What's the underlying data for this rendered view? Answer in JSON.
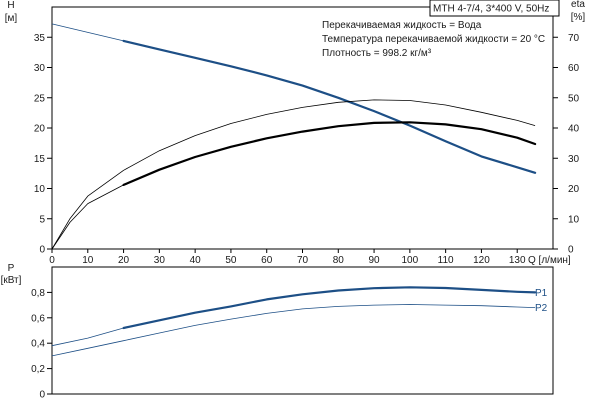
{
  "header": {
    "product": "MTH 4-7/4, 3*400 V, 50Hz",
    "info": [
      "Перекачиваемая жидкость = Вода",
      "Температура перекачиваемой жидкости = 20 °C",
      "Плотность = 998.2 кг/м³"
    ]
  },
  "colors": {
    "pump": "#1d4f86",
    "eta": "#000000",
    "power": "#1d4f86"
  },
  "chart_data": [
    {
      "type": "line",
      "xlabel": "Q [л/мин]",
      "x_ticks": [
        0,
        10,
        20,
        30,
        40,
        50,
        60,
        70,
        80,
        90,
        100,
        110,
        120,
        130
      ],
      "xlim": [
        0,
        140
      ],
      "y_left": {
        "label_top": "H",
        "label_bottom": "[м]",
        "ticks": [
          0,
          5,
          10,
          15,
          20,
          25,
          30,
          35
        ],
        "lim": [
          0,
          40
        ]
      },
      "y_right": {
        "label_top": "eta",
        "label_bottom": "[%]",
        "ticks": [
          0,
          10,
          20,
          30,
          40,
          50,
          60,
          70
        ],
        "lim": [
          0,
          80
        ]
      },
      "grid": false,
      "series": [
        {
          "axis": "left",
          "color": "#1d4f86",
          "thin_x": [
            0,
            20
          ],
          "thick_x": [
            20,
            135
          ],
          "x": [
            0,
            10,
            20,
            30,
            40,
            50,
            60,
            70,
            80,
            90,
            100,
            110,
            120,
            130,
            135
          ],
          "y": [
            37.2,
            35.8,
            34.4,
            33.0,
            31.6,
            30.2,
            28.7,
            27.0,
            25.0,
            22.8,
            20.4,
            17.8,
            15.3,
            13.5,
            12.6
          ]
        },
        {
          "axis": "right",
          "color": "#000000",
          "thin_x": [
            0,
            20
          ],
          "thick_x": [
            20,
            135
          ],
          "x": [
            0,
            5,
            10,
            20,
            30,
            40,
            50,
            60,
            70,
            80,
            90,
            100,
            110,
            120,
            130,
            135
          ],
          "y": [
            0,
            8.8,
            15.0,
            21.2,
            26.2,
            30.4,
            33.8,
            36.6,
            38.8,
            40.6,
            41.7,
            41.9,
            41.2,
            39.6,
            36.8,
            34.7
          ]
        },
        {
          "axis": "right",
          "color": "#000000",
          "thin_x": [
            0,
            135
          ],
          "thick_x": null,
          "x": [
            0,
            5,
            10,
            20,
            30,
            40,
            50,
            60,
            70,
            80,
            90,
            100,
            110,
            120,
            130,
            135
          ],
          "y": [
            0,
            10.0,
            17.5,
            26.0,
            32.5,
            37.5,
            41.5,
            44.5,
            46.8,
            48.5,
            49.3,
            49.1,
            47.6,
            45.2,
            42.5,
            40.8
          ]
        }
      ]
    },
    {
      "type": "line",
      "xlabel": "",
      "xlim": [
        0,
        140
      ],
      "y_left": {
        "label_top": "P",
        "label_bottom": "[кВт]",
        "ticks": [
          0,
          0.2,
          0.4,
          0.6,
          0.8
        ],
        "tick_labels": [
          "0",
          "0,2",
          "0,4",
          "0,6",
          "0,8"
        ],
        "lim": [
          0,
          1.0
        ]
      },
      "grid": false,
      "series": [
        {
          "name": "P1",
          "color": "#1d4f86",
          "thin_x": [
            0,
            20
          ],
          "thick_x": [
            20,
            135
          ],
          "x": [
            0,
            10,
            20,
            30,
            40,
            50,
            60,
            70,
            80,
            90,
            100,
            110,
            120,
            130,
            135
          ],
          "y": [
            0.38,
            0.44,
            0.52,
            0.58,
            0.64,
            0.69,
            0.745,
            0.785,
            0.815,
            0.833,
            0.84,
            0.835,
            0.82,
            0.805,
            0.8
          ]
        },
        {
          "name": "P2",
          "color": "#1d4f86",
          "thin_x": [
            0,
            135
          ],
          "thick_x": null,
          "x": [
            0,
            10,
            20,
            30,
            40,
            50,
            60,
            70,
            80,
            90,
            100,
            110,
            120,
            130,
            135
          ],
          "y": [
            0.3,
            0.36,
            0.42,
            0.48,
            0.54,
            0.59,
            0.635,
            0.67,
            0.69,
            0.7,
            0.705,
            0.7,
            0.695,
            0.685,
            0.68
          ]
        }
      ]
    }
  ]
}
